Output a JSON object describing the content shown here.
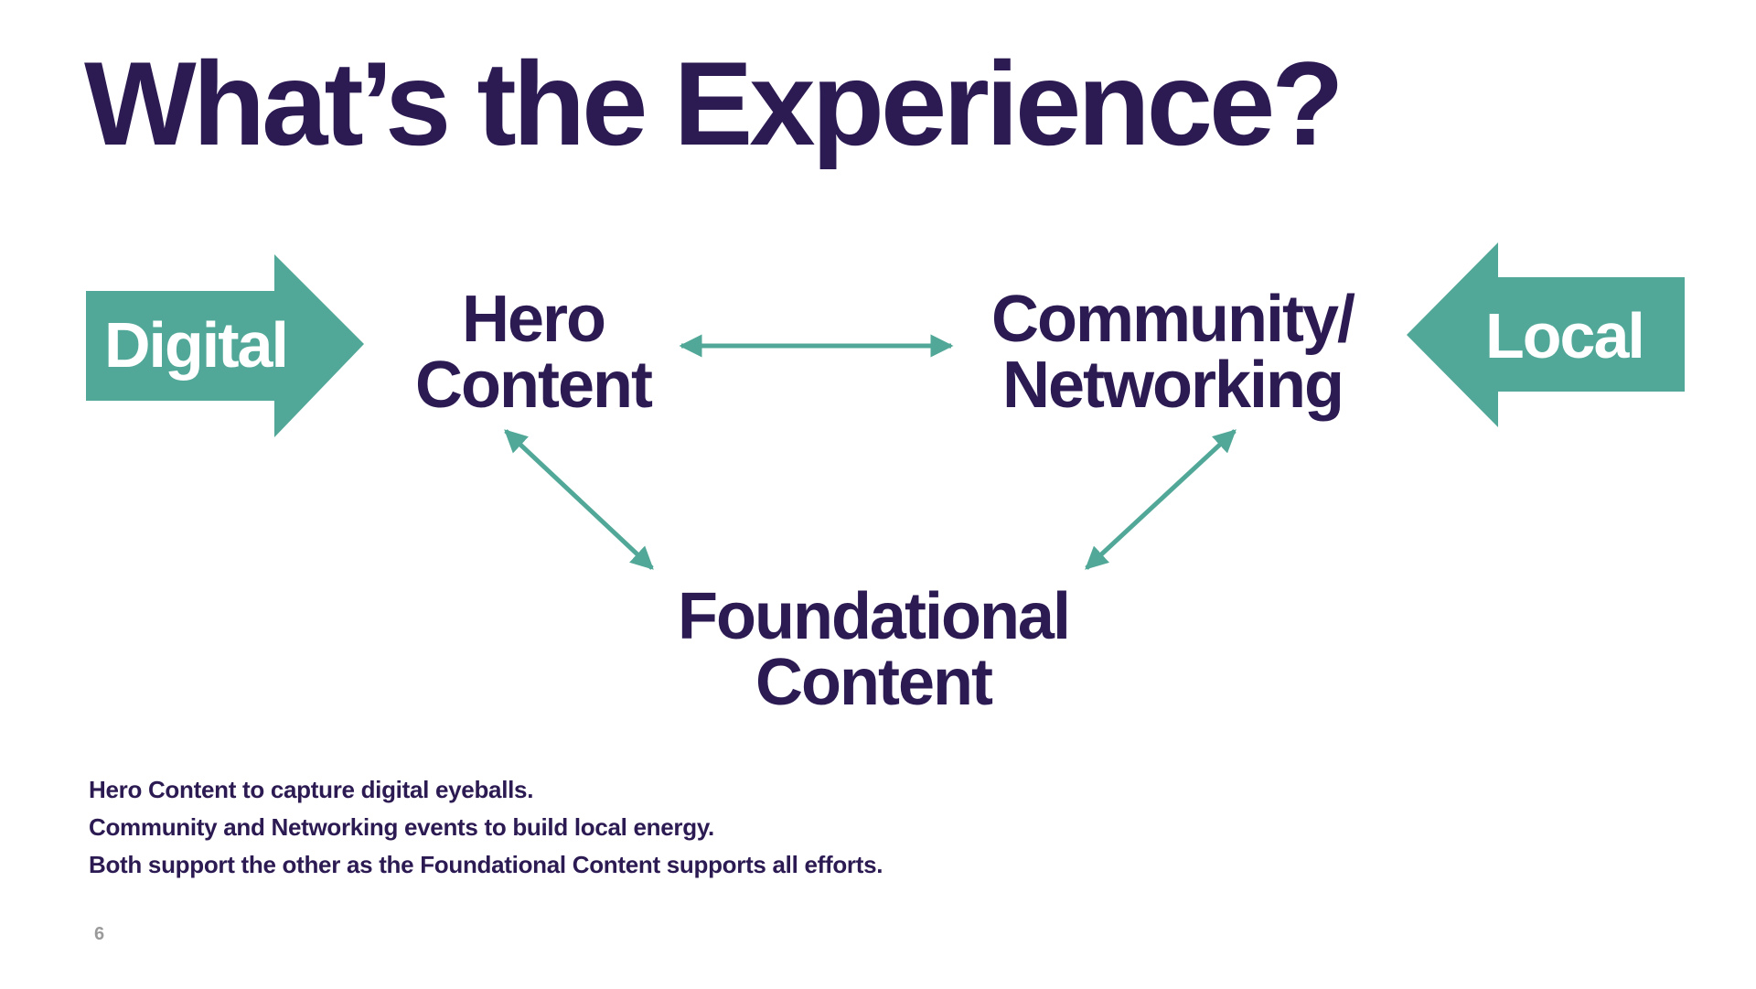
{
  "slide": {
    "title": "What’s the Experience?",
    "page_number": "6"
  },
  "colors": {
    "primary_text": "#2c1a52",
    "accent": "#52a898",
    "page_number": "#9a9a9a",
    "background": "#ffffff"
  },
  "diagram": {
    "entry_arrows": {
      "left": {
        "label": "Digital",
        "direction": "right"
      },
      "right": {
        "label": "Local",
        "direction": "left"
      }
    },
    "nodes": {
      "hero": {
        "line1": "Hero",
        "line2": "Content"
      },
      "community": {
        "line1": "Community/",
        "line2": "Networking"
      },
      "foundational": {
        "line1": "Foundational",
        "line2": "Content"
      }
    },
    "connectors": [
      {
        "from": "Hero Content",
        "to": "Community/Networking",
        "style": "double-headed"
      },
      {
        "from": "Hero Content",
        "to": "Foundational Content",
        "style": "double-headed"
      },
      {
        "from": "Community/Networking",
        "to": "Foundational Content",
        "style": "double-headed"
      }
    ]
  },
  "notes": [
    "Hero Content to capture digital eyeballs.",
    "Community and Networking events to build local energy.",
    "Both support the other as the Foundational Content supports all efforts."
  ]
}
